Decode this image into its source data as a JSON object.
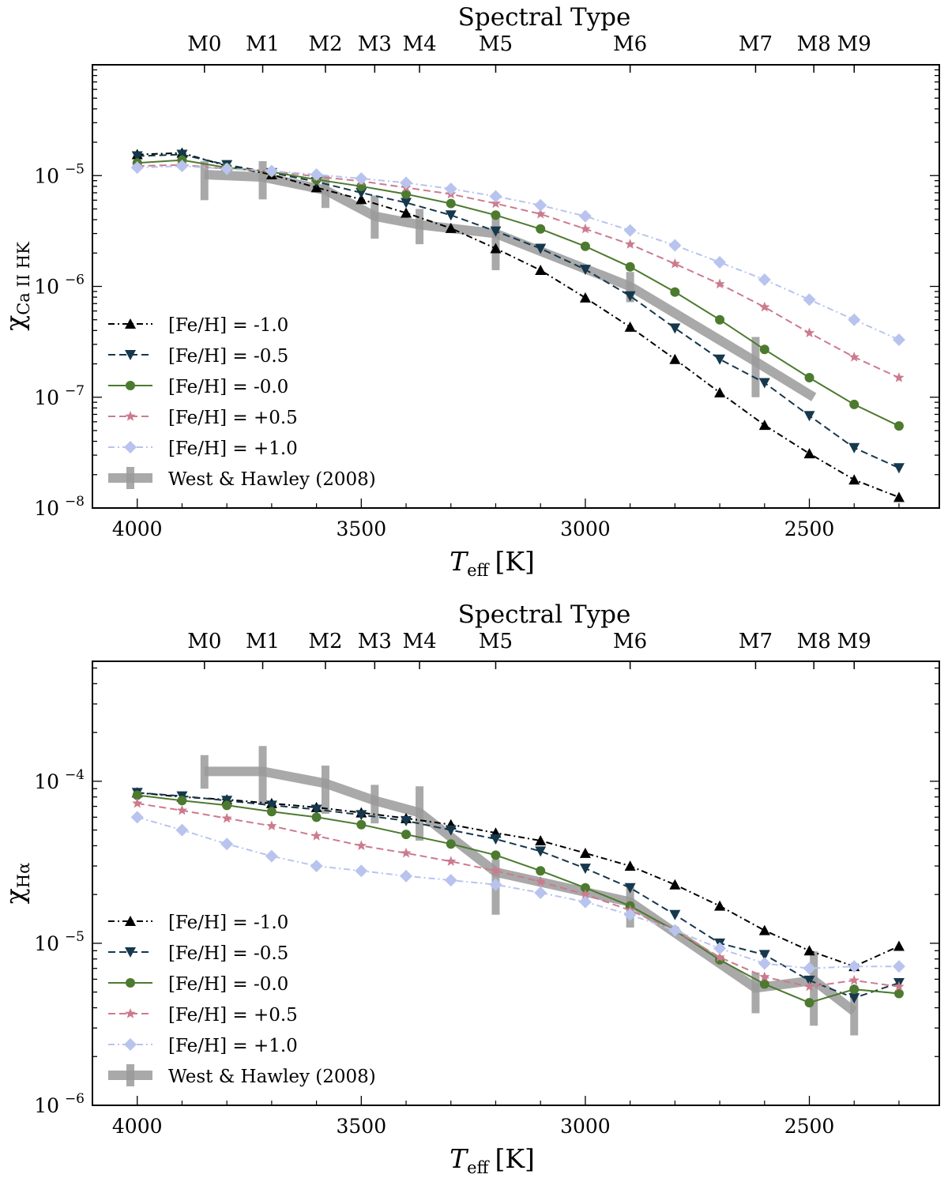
{
  "chart_data": [
    {
      "type": "line",
      "top_axis_label": "Spectral Type",
      "spectral_types": [
        {
          "label": "M0",
          "teff": 3850
        },
        {
          "label": "M1",
          "teff": 3720
        },
        {
          "label": "M2",
          "teff": 3580
        },
        {
          "label": "M3",
          "teff": 3470
        },
        {
          "label": "M4",
          "teff": 3370
        },
        {
          "label": "M5",
          "teff": 3200
        },
        {
          "label": "M6",
          "teff": 2900
        },
        {
          "label": "M7",
          "teff": 2620
        },
        {
          "label": "M8",
          "teff": 2490
        },
        {
          "label": "M9",
          "teff": 2400
        }
      ],
      "xlabel_main": "T",
      "xlabel_sub": "eff",
      "xlabel_unit": "[K]",
      "xlim": [
        4100,
        2210
      ],
      "xticks": [
        4000,
        3500,
        3000,
        2500
      ],
      "xtick_labels": [
        "4000",
        "3500",
        "3000",
        "2500"
      ],
      "ylabel_main": "χ",
      "ylabel_sub": "Ca II HK",
      "yscale": "log",
      "ylim": [
        1e-08,
        0.0001
      ],
      "yticks": [
        {
          "value": 1e-05,
          "base": "10",
          "exp": "−5"
        },
        {
          "value": 1e-06,
          "base": "10",
          "exp": "−6"
        },
        {
          "value": 1e-07,
          "base": "10",
          "exp": "−7"
        },
        {
          "value": 1e-08,
          "base": "10",
          "exp": "−8"
        }
      ],
      "x": [
        4000,
        3900,
        3800,
        3700,
        3600,
        3500,
        3400,
        3300,
        3200,
        3100,
        3000,
        2900,
        2800,
        2700,
        2600,
        2500,
        2400,
        2300
      ],
      "series": [
        {
          "name": "[Fe/H] = -1.0",
          "marker": "triangle-up",
          "dash": "dashdot",
          "color": "#000000",
          "values": [
            1.55e-05,
            1.6e-05,
            1.22e-05,
            1.02e-05,
            7.8e-06,
            6.1e-06,
            4.6e-06,
            3.35e-06,
            2.2e-06,
            1.4e-06,
            7.9e-07,
            4.3e-07,
            2.2e-07,
            1.1e-07,
            5.6e-08,
            3.1e-08,
            1.8e-08,
            1.25e-08
          ]
        },
        {
          "name": "[Fe/H] = -0.5",
          "marker": "triangle-down",
          "dash": "dashed",
          "color": "#15384d",
          "values": [
            1.5e-05,
            1.55e-05,
            1.25e-05,
            1.06e-05,
            8.8e-06,
            7e-06,
            5.7e-06,
            4.4e-06,
            3.15e-06,
            2.2e-06,
            1.42e-06,
            8.2e-07,
            4.2e-07,
            2.2e-07,
            1.35e-07,
            6.8e-08,
            3.5e-08,
            2.3e-08
          ]
        },
        {
          "name": "[Fe/H] = -0.0",
          "marker": "circle",
          "dash": "solid",
          "color": "#4c7a2f",
          "values": [
            1.3e-05,
            1.38e-05,
            1.18e-05,
            1.08e-05,
            9.2e-06,
            8e-06,
            6.8e-06,
            5.6e-06,
            4.4e-06,
            3.3e-06,
            2.3e-06,
            1.5e-06,
            8.9e-07,
            5e-07,
            2.7e-07,
            1.5e-07,
            8.6e-08,
            5.5e-08
          ]
        },
        {
          "name": "[Fe/H] = +0.5",
          "marker": "star",
          "dash": "dashed",
          "color": "#cc7b8e",
          "values": [
            1.22e-05,
            1.25e-05,
            1.15e-05,
            1.1e-05,
            9.8e-06,
            8.9e-06,
            7.8e-06,
            6.8e-06,
            5.6e-06,
            4.5e-06,
            3.3e-06,
            2.4e-06,
            1.6e-06,
            1.05e-06,
            6.5e-07,
            3.8e-07,
            2.3e-07,
            1.5e-07
          ]
        },
        {
          "name": "[Fe/H] = +1.0",
          "marker": "diamond",
          "dash": "dashdot",
          "color": "#b8c4ee",
          "values": [
            1.18e-05,
            1.22e-05,
            1.15e-05,
            1.1e-05,
            1.02e-05,
            9.4e-06,
            8.6e-06,
            7.6e-06,
            6.5e-06,
            5.4e-06,
            4.3e-06,
            3.2e-06,
            2.35e-06,
            1.65e-06,
            1.15e-06,
            7.6e-07,
            5e-07,
            3.3e-07
          ]
        }
      ],
      "reference": {
        "name": "West & Hawley (2008)",
        "color": "#9a9a9a",
        "x": [
          3850,
          3720,
          3580,
          3470,
          3370,
          3200,
          2900,
          2620,
          2490
        ],
        "y": [
          1.02e-05,
          9.7e-06,
          7.4e-06,
          4.3e-06,
          3.6e-06,
          3e-06,
          1e-06,
          2.1e-07,
          1e-07
        ],
        "err_low": [
          6e-06,
          6.1e-06,
          5.1e-06,
          2.7e-06,
          2.4e-06,
          1.4e-06,
          7.2e-07,
          1e-07,
          null
        ],
        "err_high": [
          1.35e-05,
          1.35e-05,
          1e-05,
          6.6e-06,
          5e-06,
          4.5e-06,
          1.35e-06,
          3.5e-07,
          null
        ]
      },
      "legend_position": "lower-left"
    },
    {
      "type": "line",
      "top_axis_label": "Spectral Type",
      "spectral_types": [
        {
          "label": "M0",
          "teff": 3850
        },
        {
          "label": "M1",
          "teff": 3720
        },
        {
          "label": "M2",
          "teff": 3580
        },
        {
          "label": "M3",
          "teff": 3470
        },
        {
          "label": "M4",
          "teff": 3370
        },
        {
          "label": "M5",
          "teff": 3200
        },
        {
          "label": "M6",
          "teff": 2900
        },
        {
          "label": "M7",
          "teff": 2620
        },
        {
          "label": "M8",
          "teff": 2490
        },
        {
          "label": "M9",
          "teff": 2400
        }
      ],
      "xlabel_main": "T",
      "xlabel_sub": "eff",
      "xlabel_unit": "[K]",
      "xlim": [
        4100,
        2210
      ],
      "xticks": [
        4000,
        3500,
        3000,
        2500
      ],
      "xtick_labels": [
        "4000",
        "3500",
        "3000",
        "2500"
      ],
      "ylabel_main": "χ",
      "ylabel_sub": "Hα",
      "yscale": "log",
      "ylim": [
        1e-06,
        0.00055
      ],
      "yticks": [
        {
          "value": 0.0001,
          "base": "10",
          "exp": "−4"
        },
        {
          "value": 1e-05,
          "base": "10",
          "exp": "−5"
        },
        {
          "value": 1e-06,
          "base": "10",
          "exp": "−6"
        }
      ],
      "x": [
        4000,
        3900,
        3800,
        3700,
        3600,
        3500,
        3400,
        3300,
        3200,
        3100,
        3000,
        2900,
        2800,
        2700,
        2600,
        2500,
        2400,
        2300
      ],
      "series": [
        {
          "name": "[Fe/H] = -1.0",
          "marker": "triangle-up",
          "dash": "dashdot",
          "color": "#000000",
          "values": [
            8.5e-05,
            8e-05,
            7.7e-05,
            7.3e-05,
            6.9e-05,
            6.4e-05,
            5.9e-05,
            5.4e-05,
            4.8e-05,
            4.3e-05,
            3.6e-05,
            3e-05,
            2.3e-05,
            1.7e-05,
            1.2e-05,
            9e-06,
            7.2e-06,
            9.6e-06
          ]
        },
        {
          "name": "[Fe/H] = -0.5",
          "marker": "triangle-down",
          "dash": "dashed",
          "color": "#15384d",
          "values": [
            8.5e-05,
            8.1e-05,
            7.6e-05,
            7.1e-05,
            6.7e-05,
            6.2e-05,
            5.7e-05,
            5e-05,
            4.4e-05,
            3.7e-05,
            2.9e-05,
            2.2e-05,
            1.5e-05,
            1e-05,
            8.5e-06,
            5.9e-06,
            4.6e-06,
            5.7e-06
          ]
        },
        {
          "name": "[Fe/H] = -0.0",
          "marker": "circle",
          "dash": "solid",
          "color": "#4c7a2f",
          "values": [
            8.2e-05,
            7.6e-05,
            7.1e-05,
            6.5e-05,
            6e-05,
            5.4e-05,
            4.7e-05,
            4.1e-05,
            3.5e-05,
            2.8e-05,
            2.2e-05,
            1.7e-05,
            1.2e-05,
            7.9e-06,
            5.6e-06,
            4.3e-06,
            5.2e-06,
            4.9e-06
          ]
        },
        {
          "name": "[Fe/H] = +0.5",
          "marker": "star",
          "dash": "dashed",
          "color": "#cc7b8e",
          "values": [
            7.3e-05,
            6.6e-05,
            5.9e-05,
            5.3e-05,
            4.6e-05,
            4e-05,
            3.6e-05,
            3.2e-05,
            2.8e-05,
            2.4e-05,
            2e-05,
            1.6e-05,
            1.2e-05,
            8.2e-06,
            6.2e-06,
            5.4e-06,
            5.9e-06,
            5.4e-06
          ]
        },
        {
          "name": "[Fe/H] = +1.0",
          "marker": "diamond",
          "dash": "dashdot",
          "color": "#b8c4ee",
          "values": [
            6e-05,
            5e-05,
            4.1e-05,
            3.45e-05,
            3e-05,
            2.8e-05,
            2.6e-05,
            2.45e-05,
            2.3e-05,
            2.05e-05,
            1.8e-05,
            1.5e-05,
            1.2e-05,
            9.3e-06,
            7.5e-06,
            7e-06,
            7.2e-06,
            7.2e-06
          ]
        }
      ],
      "reference": {
        "name": "West & Hawley (2008)",
        "color": "#9a9a9a",
        "x": [
          3850,
          3720,
          3580,
          3470,
          3370,
          3200,
          2900,
          2620,
          2490,
          2400
        ],
        "y": [
          0.000115,
          0.000115,
          9.7e-05,
          7.6e-05,
          6.4e-05,
          2.75e-05,
          1.8e-05,
          5.3e-06,
          5.9e-06,
          3.8e-06
        ],
        "err_low": [
          9e-05,
          7.2e-05,
          6.3e-05,
          5.5e-05,
          4.3e-05,
          1.5e-05,
          1.25e-05,
          3.7e-06,
          3.1e-06,
          2.7e-06
        ],
        "err_high": [
          0.000145,
          0.000165,
          0.000125,
          9.5e-05,
          9.3e-05,
          3.3e-05,
          2.3e-05,
          6.6e-06,
          8.9e-06,
          5.2e-06
        ]
      },
      "legend_position": "lower-left"
    }
  ]
}
